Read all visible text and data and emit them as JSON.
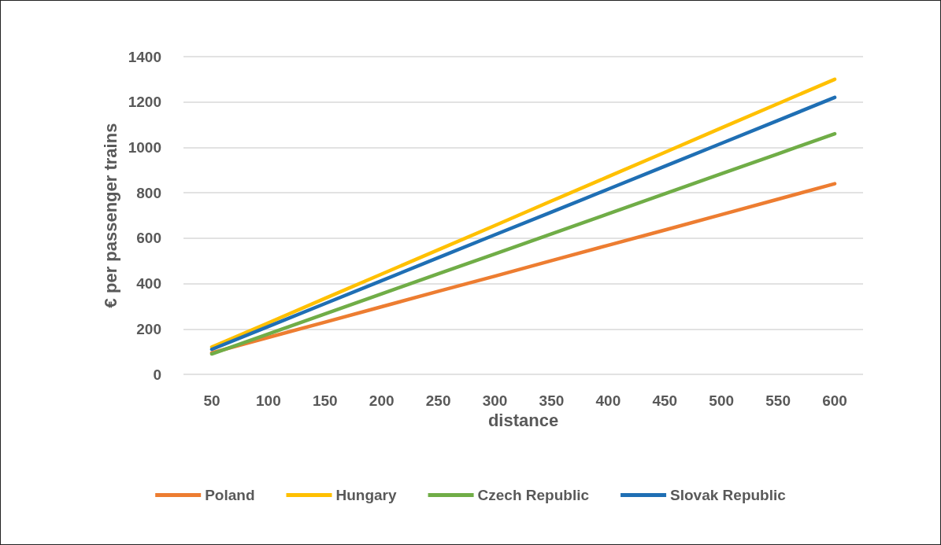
{
  "chart_data": {
    "type": "line",
    "xlabel": "distance",
    "ylabel": "€ per passenger trains",
    "categories": [
      "50",
      "100",
      "150",
      "200",
      "250",
      "300",
      "350",
      "400",
      "450",
      "500",
      "550",
      "600"
    ],
    "series": [
      {
        "name": "Poland",
        "color": "#ed7d31",
        "values": [
          95,
          163,
          230,
          298,
          366,
          433,
          501,
          569,
          636,
          704,
          772,
          840
        ]
      },
      {
        "name": "Hungary",
        "color": "#ffc000",
        "values": [
          120,
          227,
          335,
          442,
          549,
          656,
          764,
          871,
          978,
          1086,
          1193,
          1300
        ]
      },
      {
        "name": "Czech Republic",
        "color": "#70ad47",
        "values": [
          90,
          178,
          266,
          355,
          443,
          531,
          619,
          707,
          796,
          884,
          972,
          1060
        ]
      },
      {
        "name": "Slovak Republic",
        "color": "#1f6fb4",
        "values": [
          110,
          211,
          312,
          413,
          514,
          615,
          715,
          816,
          917,
          1018,
          1119,
          1220
        ]
      }
    ],
    "ylim": [
      0,
      1400
    ],
    "yticks": [
      0,
      200,
      400,
      600,
      800,
      1000,
      1200,
      1400
    ],
    "grid": "y",
    "legend": "bottom",
    "marker": "none",
    "line_style": "solid"
  }
}
